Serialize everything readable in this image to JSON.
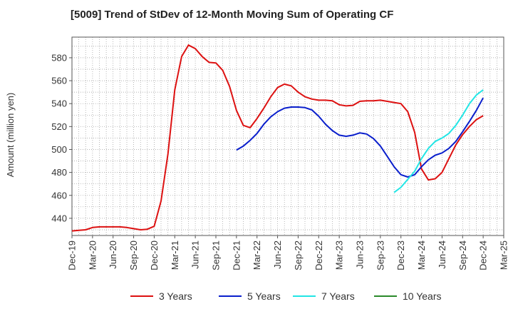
{
  "chart_data": {
    "type": "line",
    "title": "[5009]  Trend of StDev of 12-Month Moving Sum of Operating CF",
    "ylabel": "Amount (million yen)",
    "xlabel": "",
    "ylim": [
      425,
      598
    ],
    "yticks": [
      440,
      460,
      480,
      500,
      520,
      540,
      560,
      580
    ],
    "x_start": "2019-12",
    "x_end": "2025-03",
    "xtick_labels": [
      "Dec-19",
      "Mar-20",
      "Jun-20",
      "Sep-20",
      "Dec-20",
      "Mar-21",
      "Jun-21",
      "Sep-21",
      "Dec-21",
      "Mar-22",
      "Jun-22",
      "Sep-22",
      "Dec-22",
      "Mar-23",
      "Jun-23",
      "Sep-23",
      "Dec-23",
      "Mar-24",
      "Jun-24",
      "Sep-24",
      "Dec-24",
      "Mar-25"
    ],
    "grid": true,
    "legend_position": "bottom",
    "series": [
      {
        "name": "3 Years",
        "color": "#dd1111",
        "x": [
          "2019-12",
          "2020-01",
          "2020-02",
          "2020-03",
          "2020-04",
          "2020-05",
          "2020-06",
          "2020-07",
          "2020-08",
          "2020-09",
          "2020-10",
          "2020-11",
          "2020-12",
          "2021-01",
          "2021-02",
          "2021-03",
          "2021-04",
          "2021-05",
          "2021-06",
          "2021-07",
          "2021-08",
          "2021-09",
          "2021-10",
          "2021-11",
          "2021-12",
          "2022-01",
          "2022-02",
          "2022-03",
          "2022-04",
          "2022-05",
          "2022-06",
          "2022-07",
          "2022-08",
          "2022-09",
          "2022-10",
          "2022-11",
          "2022-12",
          "2023-01",
          "2023-02",
          "2023-03",
          "2023-04",
          "2023-05",
          "2023-06",
          "2023-07",
          "2023-08",
          "2023-09",
          "2023-10",
          "2023-11",
          "2023-12",
          "2024-01",
          "2024-02",
          "2024-03",
          "2024-04",
          "2024-05",
          "2024-06",
          "2024-07",
          "2024-08",
          "2024-09",
          "2024-10",
          "2024-11",
          "2024-12"
        ],
        "values": [
          429,
          429.5,
          430,
          432,
          432.5,
          432.5,
          432.5,
          432.5,
          432,
          431,
          430,
          430.5,
          433,
          455,
          496,
          552,
          581,
          591,
          588,
          581,
          576,
          575.5,
          569,
          555,
          534,
          521,
          519,
          527,
          536,
          546,
          554,
          557,
          555.5,
          550,
          546,
          544,
          543,
          543,
          542.5,
          539,
          538,
          538.5,
          542,
          542.5,
          542.5,
          543,
          542,
          541,
          540,
          533,
          515,
          483,
          473.5,
          474.5,
          480,
          492,
          504,
          513,
          520,
          526,
          529.5
        ]
      },
      {
        "name": "5 Years",
        "color": "#0a1fcc",
        "x": [
          "2021-12",
          "2022-01",
          "2022-02",
          "2022-03",
          "2022-04",
          "2022-05",
          "2022-06",
          "2022-07",
          "2022-08",
          "2022-09",
          "2022-10",
          "2022-11",
          "2022-12",
          "2023-01",
          "2023-02",
          "2023-03",
          "2023-04",
          "2023-05",
          "2023-06",
          "2023-07",
          "2023-08",
          "2023-09",
          "2023-10",
          "2023-11",
          "2023-12",
          "2024-01",
          "2024-02",
          "2024-03",
          "2024-04",
          "2024-05",
          "2024-06",
          "2024-07",
          "2024-08",
          "2024-09",
          "2024-10",
          "2024-11",
          "2024-12"
        ],
        "values": [
          499.5,
          503,
          508,
          514,
          522,
          528.5,
          533,
          536,
          537,
          537,
          536.5,
          534.5,
          529,
          522,
          516.5,
          512.5,
          511.5,
          512.5,
          514.5,
          513.5,
          509.5,
          503,
          494,
          485,
          478,
          476,
          478,
          485,
          491,
          495,
          497,
          501,
          507,
          515.5,
          524.5,
          534,
          545
        ]
      },
      {
        "name": "7 Years",
        "color": "#22e5e5",
        "x": [
          "2023-11",
          "2023-12",
          "2024-01",
          "2024-02",
          "2024-03",
          "2024-04",
          "2024-05",
          "2024-06",
          "2024-07",
          "2024-08",
          "2024-09",
          "2024-10",
          "2024-11",
          "2024-12"
        ],
        "values": [
          462.5,
          467,
          474,
          481,
          492,
          501,
          507,
          510,
          514,
          521,
          530,
          540,
          547.5,
          552
        ]
      },
      {
        "name": "10 Years",
        "color": "#2a8a2a",
        "x": [],
        "values": []
      }
    ]
  }
}
